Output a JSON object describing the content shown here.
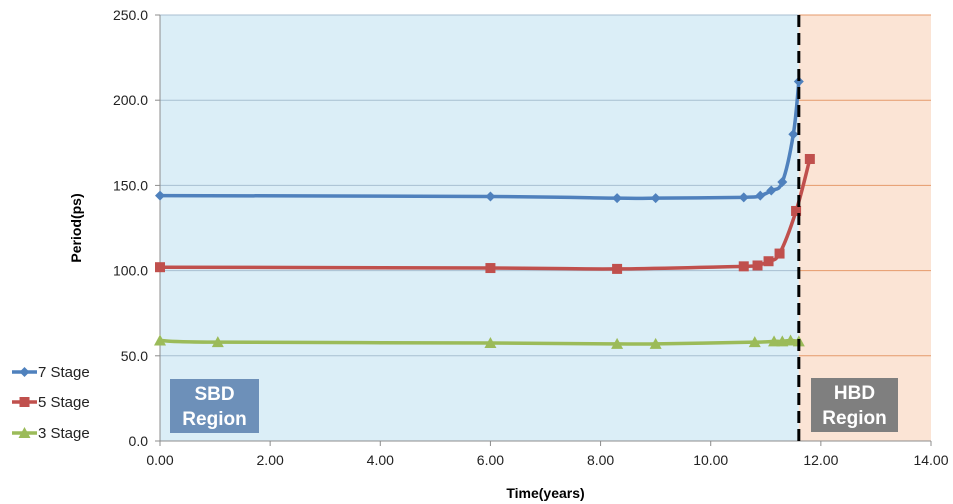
{
  "chart_data": {
    "type": "line",
    "xlabel": "Time(years)",
    "ylabel": "Period(ps)",
    "xlim": [
      0,
      14
    ],
    "ylim": [
      0,
      250
    ],
    "x_ticks": [
      "0.00",
      "2.00",
      "4.00",
      "6.00",
      "8.00",
      "10.00",
      "12.00",
      "14.00"
    ],
    "y_ticks": [
      "0.0",
      "50.0",
      "100.0",
      "150.0",
      "200.0",
      "250.0"
    ],
    "grid": true,
    "legend_position": "left-bottom",
    "boundary_x": 11.6,
    "regions": [
      {
        "line1": "SBD",
        "line2": "Region",
        "x_start": 0,
        "x_end": 11.6,
        "fill": "#dbeef7",
        "label_fill": "#6d90b9"
      },
      {
        "line1": "HBD",
        "line2": "Region",
        "x_start": 11.6,
        "x_end": 14,
        "fill": "#fbe4d5",
        "label_fill": "#7f7f7f"
      }
    ],
    "series": [
      {
        "name": "7 Stage",
        "color": "#4f81bd",
        "marker": "diamond",
        "points": [
          [
            0.0,
            144
          ],
          [
            6.0,
            143.5
          ],
          [
            8.3,
            142.5
          ],
          [
            9.0,
            142.5
          ],
          [
            10.6,
            143
          ],
          [
            10.9,
            144
          ],
          [
            11.1,
            147
          ],
          [
            11.3,
            152
          ],
          [
            11.5,
            180
          ],
          [
            11.6,
            211
          ]
        ]
      },
      {
        "name": "5 Stage",
        "color": "#c0504d",
        "marker": "square",
        "points": [
          [
            0.0,
            102
          ],
          [
            6.0,
            101.5
          ],
          [
            8.3,
            101
          ],
          [
            10.6,
            102.5
          ],
          [
            10.85,
            103
          ],
          [
            11.05,
            105.5
          ],
          [
            11.25,
            110
          ],
          [
            11.55,
            135
          ],
          [
            11.8,
            165.5
          ]
        ]
      },
      {
        "name": "3 Stage",
        "color": "#9bbb59",
        "marker": "triangle",
        "points": [
          [
            0.0,
            59
          ],
          [
            1.05,
            58
          ],
          [
            6.0,
            57.5
          ],
          [
            8.3,
            57
          ],
          [
            9.0,
            57
          ],
          [
            10.8,
            58
          ],
          [
            11.15,
            58.5
          ],
          [
            11.3,
            58.5
          ],
          [
            11.45,
            59
          ],
          [
            11.6,
            58.5
          ]
        ]
      }
    ]
  },
  "colors": {
    "grid": "#a8bfd1",
    "hbd_grid": "#e59a6b",
    "boundary": "#000000"
  }
}
